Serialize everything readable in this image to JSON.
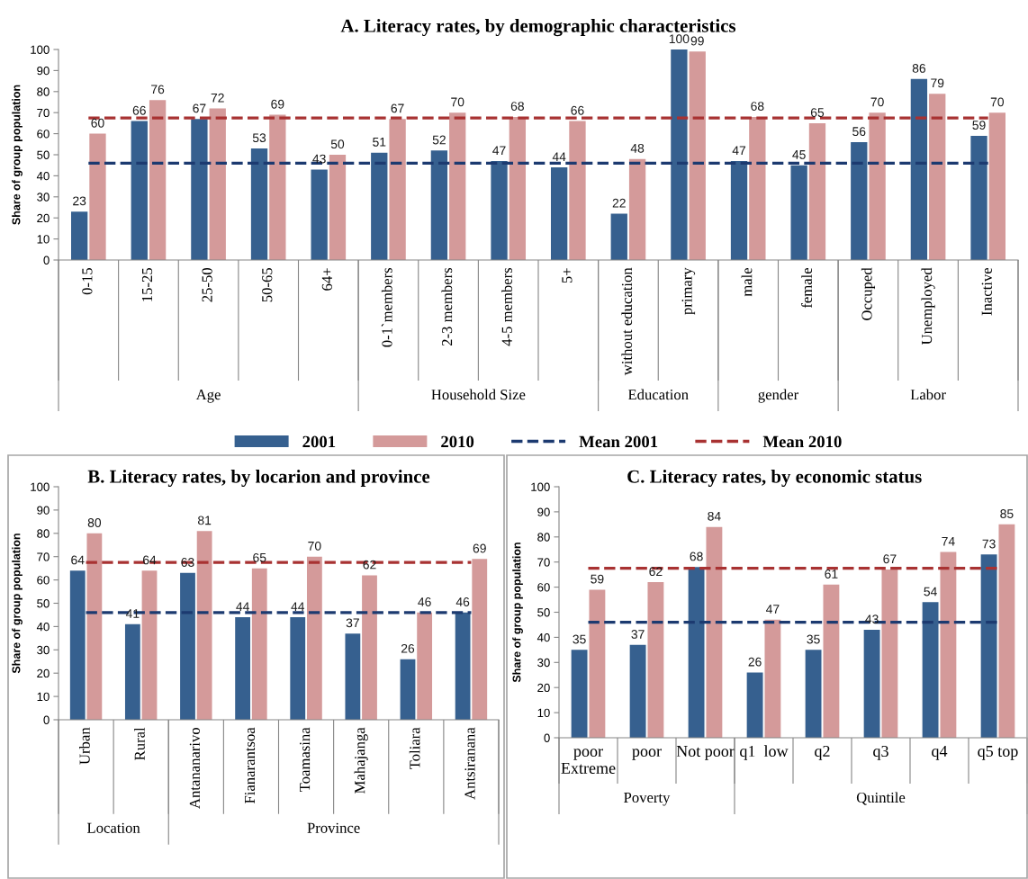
{
  "chart_data": [
    {
      "type": "bar",
      "title": "A. Literacy rates, by demographic characteristics",
      "ylabel": "Share of group population",
      "categories": [
        "0-15",
        "15-25",
        "25-50",
        "50-65",
        "64+",
        "0-1`members",
        "2-3 members",
        "4-5 members",
        "5+",
        "without education",
        "primary",
        "male",
        "female",
        "Occuped",
        "Unemployed",
        "Inactive"
      ],
      "series": [
        {
          "name": "2001",
          "color": "#36608f",
          "values": [
            23,
            66,
            67,
            53,
            43,
            51,
            52,
            47,
            44,
            22,
            100,
            47,
            45,
            56,
            86,
            59
          ]
        },
        {
          "name": "2010",
          "color": "#d49a9a",
          "values": [
            60,
            76,
            72,
            69,
            50,
            67,
            70,
            68,
            66,
            48,
            99,
            68,
            65,
            70,
            79,
            70
          ]
        },
        {
          "name": "Mean 2001",
          "type": "line",
          "line_style": "dashed",
          "data_labels": false,
          "color": "#1c3a70",
          "values": [
            46,
            46,
            46,
            46,
            46,
            46,
            46,
            46,
            46,
            46,
            46,
            46,
            46,
            46,
            46,
            46
          ]
        },
        {
          "name": "Mean 2010",
          "type": "line",
          "line_style": "dashed",
          "data_labels": false,
          "color": "#a83232",
          "values": [
            67.5,
            67.5,
            67.5,
            67.5,
            67.5,
            67.5,
            67.5,
            67.5,
            67.5,
            67.5,
            67.5,
            67.5,
            67.5,
            67.5,
            67.5,
            67.5
          ]
        }
      ],
      "ylim": [
        0,
        100
      ],
      "yticks": [
        0,
        10,
        20,
        30,
        40,
        50,
        60,
        70,
        80,
        90,
        100
      ],
      "data_labels": true,
      "legend": "bottom",
      "annotations": [
        "Age",
        "Household Size",
        "Education",
        "gender",
        "Labor"
      ]
    },
    {
      "type": "bar",
      "title": "B. Literacy rates, by locarion and province",
      "ylabel": "Share of group population",
      "categories": [
        "Urban",
        "Rural",
        "Antananarivo",
        "Fianarantsoa",
        "Toamasina",
        "Mahajanga",
        "Toliara",
        "Antsiranana"
      ],
      "series": [
        {
          "color": "#36608f",
          "values": [
            64,
            41,
            63,
            44,
            44,
            37,
            26,
            46
          ]
        },
        {
          "color": "#d49a9a",
          "values": [
            80,
            64,
            81,
            65,
            70,
            62,
            46,
            69
          ]
        },
        {
          "type": "line",
          "line_style": "dashed",
          "data_labels": false,
          "color": "#1c3a70",
          "values": [
            46,
            46,
            46,
            46,
            46,
            46,
            46,
            46
          ]
        },
        {
          "type": "line",
          "line_style": "dashed",
          "data_labels": false,
          "color": "#a83232",
          "values": [
            67.5,
            67.5,
            67.5,
            67.5,
            67.5,
            67.5,
            67.5,
            67.5
          ]
        }
      ],
      "ylim": [
        0,
        100
      ],
      "yticks": [
        0,
        10,
        20,
        30,
        40,
        50,
        60,
        70,
        80,
        90,
        100
      ],
      "data_labels": true,
      "annotations": [
        "Location",
        "Province"
      ]
    },
    {
      "type": "bar",
      "title": "C. Literacy rates, by economic status",
      "ylabel": "Share of group population",
      "categories": [
        "poor\nExtreme",
        "poor",
        "Not poor",
        "q1  low",
        "q2",
        "q3",
        "q4",
        "q5 top"
      ],
      "series": [
        {
          "color": "#36608f",
          "values": [
            35,
            37,
            68,
            26,
            35,
            43,
            54,
            73
          ]
        },
        {
          "color": "#d49a9a",
          "values": [
            59,
            62,
            84,
            47,
            61,
            67,
            74,
            85
          ]
        },
        {
          "type": "line",
          "line_style": "dashed",
          "data_labels": false,
          "color": "#1c3a70",
          "values": [
            46,
            46,
            46,
            46,
            46,
            46,
            46,
            46
          ]
        },
        {
          "type": "line",
          "line_style": "dashed",
          "data_labels": false,
          "color": "#a83232",
          "values": [
            67.5,
            67.5,
            67.5,
            67.5,
            67.5,
            67.5,
            67.5,
            67.5
          ]
        }
      ],
      "ylim": [
        0,
        100
      ],
      "yticks": [
        0,
        10,
        20,
        30,
        40,
        50,
        60,
        70,
        80,
        90,
        100
      ],
      "data_labels": true,
      "annotations": [
        "Poverty",
        "Quintile"
      ]
    }
  ]
}
